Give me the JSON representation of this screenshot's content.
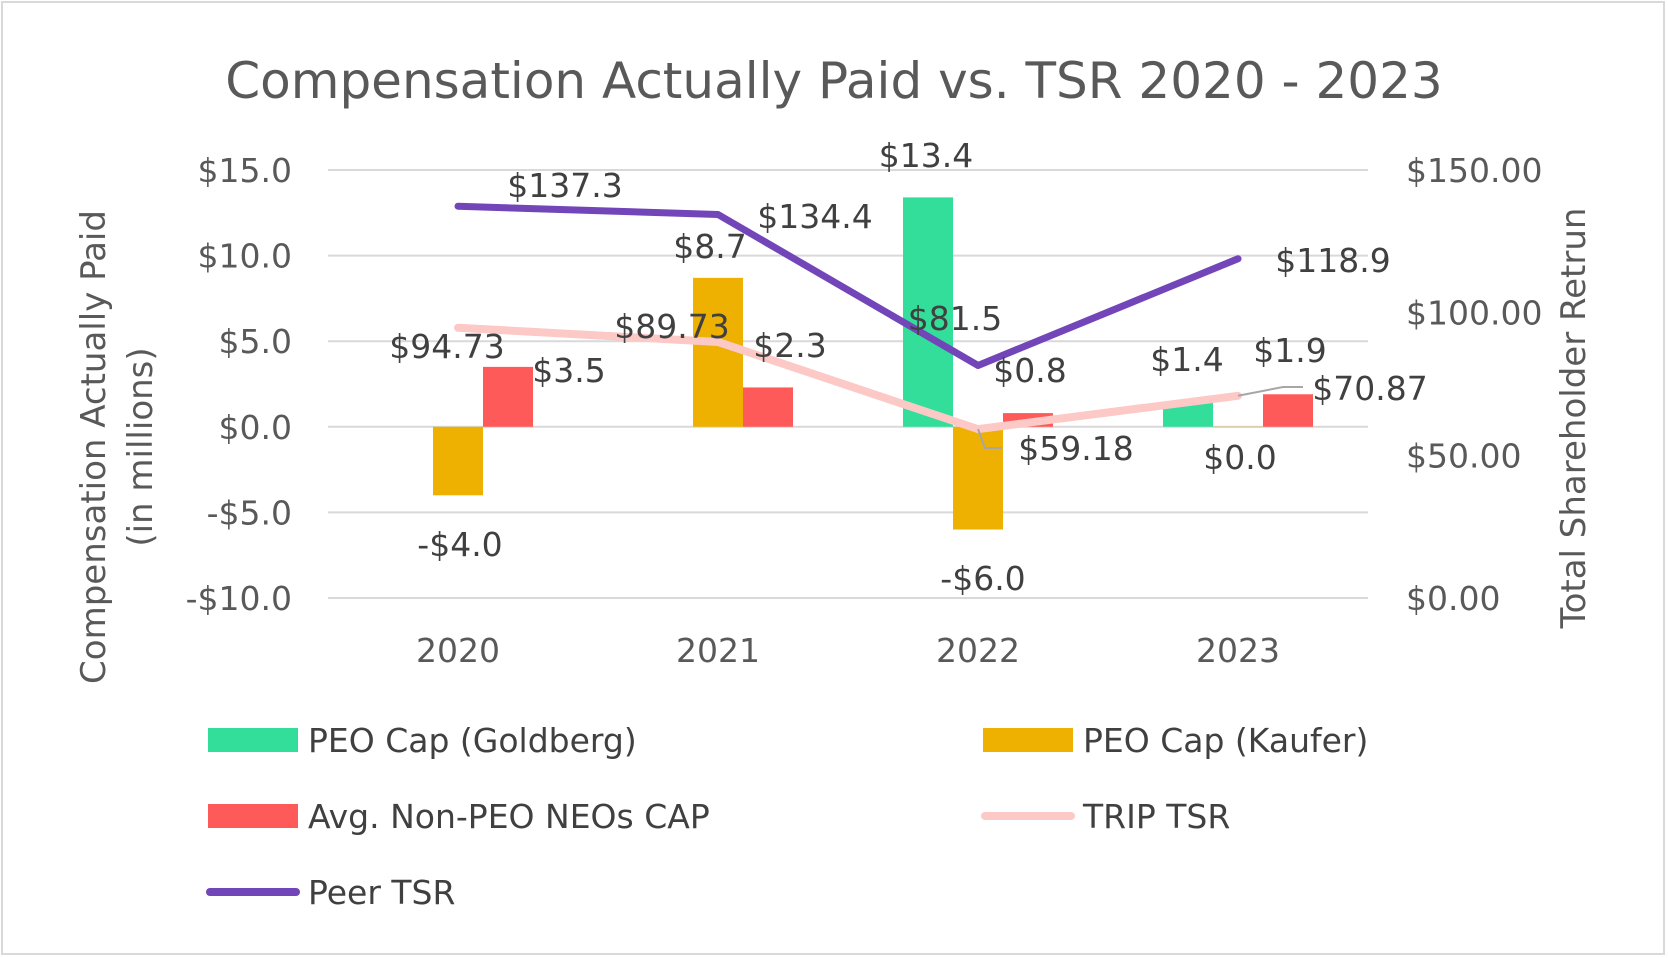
{
  "chart_data": {
    "type": "bar",
    "title": "Compensation Actually Paid vs. TSR 2020 - 2023",
    "categories": [
      "2020",
      "2021",
      "2022",
      "2023"
    ],
    "ylabel_left": [
      "Compensation Actually Paid",
      "(in millions)"
    ],
    "ylabel_right": "Total Shareholder Retrun",
    "ylim_left": [
      -10,
      15
    ],
    "ylim_right": [
      0,
      150
    ],
    "left_ticks": [
      {
        "value": 15,
        "label": "$15.0"
      },
      {
        "value": 10,
        "label": "$10.0"
      },
      {
        "value": 5,
        "label": "$5.0"
      },
      {
        "value": 0,
        "label": "$0.0"
      },
      {
        "value": -5,
        "label": "-$5.0"
      },
      {
        "value": -10,
        "label": "-$10.0"
      }
    ],
    "right_ticks": [
      {
        "value": 150,
        "label": "$150.00"
      },
      {
        "value": 100,
        "label": "$100.00"
      },
      {
        "value": 50,
        "label": "$50.00"
      },
      {
        "value": 0,
        "label": "$0.00"
      }
    ],
    "grid": true,
    "legend_position": "bottom",
    "bar_series": [
      {
        "name": "PEO Cap (Goldberg)",
        "color": "#33de9b",
        "values": [
          null,
          null,
          13.4,
          1.4
        ],
        "labels": [
          null,
          null,
          "$13.4",
          "$1.4"
        ]
      },
      {
        "name": "PEO Cap (Kaufer)",
        "color": "#eeb001",
        "values": [
          -4.0,
          8.7,
          -6.0,
          0.0
        ],
        "labels": [
          "-$4.0",
          "$8.7",
          "-$6.0",
          "$0.0"
        ]
      },
      {
        "name": "Avg. Non-PEO NEOs CAP",
        "color": "#ff5a5a",
        "values": [
          3.5,
          2.3,
          0.8,
          1.9
        ],
        "labels": [
          "$3.5",
          "$2.3",
          "$0.8",
          "$1.9"
        ]
      }
    ],
    "line_series": [
      {
        "name": "TRIP TSR",
        "color": "#fcc9c6",
        "axis": "right",
        "values": [
          94.73,
          89.73,
          59.18,
          70.87
        ],
        "labels": [
          "$94.73",
          "$89.73",
          "$59.18",
          "$70.87"
        ]
      },
      {
        "name": "Peer TSR",
        "color": "#7245b8",
        "axis": "right",
        "values": [
          137.3,
          134.4,
          81.5,
          118.9
        ],
        "labels": [
          "$137.3",
          "$134.4",
          "$81.5",
          "$118.9"
        ]
      }
    ],
    "legend": [
      {
        "name": "PEO Cap (Goldberg)",
        "kind": "bar",
        "color": "#33de9b"
      },
      {
        "name": "PEO Cap (Kaufer)",
        "kind": "bar",
        "color": "#eeb001"
      },
      {
        "name": "Avg. Non-PEO NEOs CAP",
        "kind": "bar",
        "color": "#ff5a5a"
      },
      {
        "name": "TRIP TSR",
        "kind": "line",
        "color": "#fcc9c6"
      },
      {
        "name": "Peer TSR",
        "kind": "line",
        "color": "#7245b8"
      }
    ]
  }
}
